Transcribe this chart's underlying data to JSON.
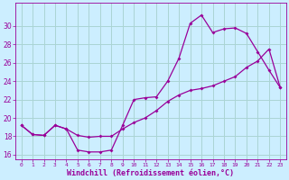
{
  "xlabel": "Windchill (Refroidissement éolien,°C)",
  "background_color": "#cceeff",
  "grid_color": "#aad4d4",
  "line_color": "#990099",
  "x_hours": [
    0,
    1,
    2,
    3,
    4,
    5,
    6,
    7,
    8,
    9,
    10,
    11,
    12,
    13,
    14,
    15,
    16,
    17,
    18,
    19,
    20,
    21,
    22,
    23
  ],
  "temp_line": [
    19.2,
    18.2,
    18.1,
    19.2,
    18.8,
    18.1,
    17.9,
    18.0,
    18.0,
    18.8,
    19.5,
    20.0,
    20.8,
    21.8,
    22.5,
    23.0,
    23.2,
    23.5,
    24.0,
    24.5,
    25.5,
    26.2,
    27.5,
    23.3
  ],
  "windchill_line": [
    19.2,
    18.2,
    18.1,
    19.2,
    18.8,
    16.5,
    16.3,
    16.3,
    16.5,
    19.2,
    22.0,
    22.2,
    22.3,
    24.0,
    26.5,
    30.3,
    31.2,
    29.3,
    29.7,
    29.8,
    29.2,
    27.2,
    25.2,
    23.3
  ],
  "ylim": [
    15.5,
    32.5
  ],
  "xlim": [
    -0.5,
    23.5
  ],
  "yticks": [
    16,
    18,
    20,
    22,
    24,
    26,
    28,
    30
  ],
  "xtick_labels": [
    "0",
    "1",
    "2",
    "3",
    "4",
    "5",
    "6",
    "7",
    "8",
    "9",
    "10",
    "11",
    "12",
    "13",
    "14",
    "15",
    "16",
    "17",
    "18",
    "19",
    "20",
    "21",
    "22",
    "23"
  ]
}
